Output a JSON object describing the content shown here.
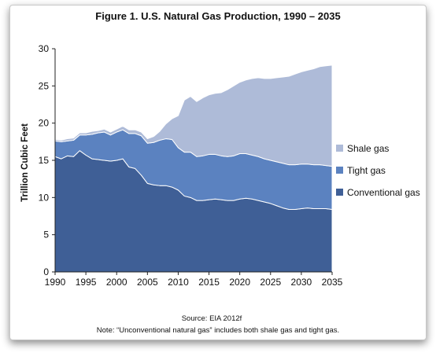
{
  "chart_data": {
    "type": "area",
    "stacked": true,
    "title": "Figure 1. U.S. Natural Gas Production, 1990 – 2035",
    "ylabel": "Trillion Cubic Feet",
    "xlabel": "",
    "xlim": [
      1990,
      2035
    ],
    "ylim": [
      0,
      30
    ],
    "x_ticks": [
      1990,
      1995,
      2000,
      2005,
      2010,
      2015,
      2020,
      2025,
      2030,
      2035
    ],
    "y_ticks": [
      0,
      5,
      10,
      15,
      20,
      25,
      30
    ],
    "grid": false,
    "legend_position": "right",
    "x": [
      1990,
      1991,
      1992,
      1993,
      1994,
      1995,
      1996,
      1997,
      1998,
      1999,
      2000,
      2001,
      2002,
      2003,
      2004,
      2005,
      2006,
      2007,
      2008,
      2009,
      2010,
      2011,
      2012,
      2013,
      2014,
      2015,
      2016,
      2017,
      2018,
      2019,
      2020,
      2021,
      2022,
      2023,
      2024,
      2025,
      2026,
      2027,
      2028,
      2029,
      2030,
      2031,
      2032,
      2033,
      2034,
      2035
    ],
    "series": [
      {
        "name": "Conventional gas",
        "color": "#3f5f96",
        "values": [
          15.5,
          15.2,
          15.6,
          15.5,
          16.3,
          15.7,
          15.2,
          15.1,
          15.0,
          14.9,
          15.0,
          15.2,
          14.1,
          13.9,
          13.0,
          11.9,
          11.7,
          11.6,
          11.6,
          11.4,
          11.0,
          10.2,
          10.0,
          9.6,
          9.6,
          9.7,
          9.8,
          9.7,
          9.6,
          9.6,
          9.8,
          9.9,
          9.8,
          9.6,
          9.4,
          9.2,
          8.9,
          8.6,
          8.4,
          8.4,
          8.5,
          8.6,
          8.5,
          8.5,
          8.5,
          8.4
        ]
      },
      {
        "name": "Tight gas",
        "color": "#5b82c0",
        "values": [
          2.1,
          2.3,
          2.0,
          2.2,
          2.1,
          2.7,
          3.3,
          3.6,
          3.8,
          3.5,
          3.8,
          3.9,
          4.5,
          4.7,
          5.3,
          5.4,
          5.7,
          6.1,
          6.3,
          6.4,
          5.7,
          5.9,
          6.1,
          5.9,
          6.0,
          6.1,
          6.0,
          5.9,
          5.9,
          6.0,
          6.1,
          6.0,
          5.9,
          5.9,
          5.8,
          5.8,
          5.9,
          6.0,
          6.0,
          6.0,
          6.0,
          5.9,
          5.9,
          5.9,
          5.8,
          5.8
        ]
      },
      {
        "name": "Shale gas",
        "color": "#aebbd8",
        "values": [
          0.2,
          0.2,
          0.3,
          0.3,
          0.3,
          0.3,
          0.4,
          0.3,
          0.4,
          0.4,
          0.4,
          0.5,
          0.5,
          0.5,
          0.5,
          0.6,
          0.8,
          1.2,
          2.0,
          2.8,
          4.3,
          7.0,
          7.5,
          7.4,
          7.8,
          8.0,
          8.2,
          8.5,
          9.0,
          9.4,
          9.6,
          9.9,
          10.3,
          10.6,
          10.8,
          11.0,
          11.3,
          11.6,
          11.9,
          12.2,
          12.4,
          12.6,
          12.9,
          13.2,
          13.4,
          13.6
        ]
      }
    ],
    "legend_order": [
      "Shale gas",
      "Tight gas",
      "Conventional gas"
    ],
    "source": "Source: EIA 2012f",
    "note": "Note: “Unconventional natural gas” includes both shale gas and tight gas."
  }
}
